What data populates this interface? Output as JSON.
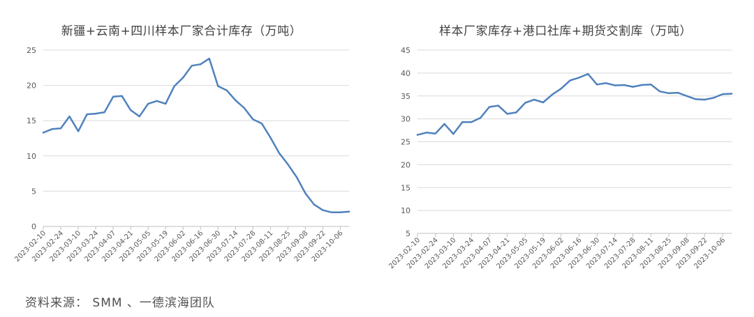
{
  "colors": {
    "line": "#4f81bd",
    "grid": "#d9d9d9",
    "axis": "#bfbfbf",
    "text": "#595959"
  },
  "source_note": "资料来源： SMM 、一德滨海团队",
  "chart_data": [
    {
      "type": "line",
      "title": "新疆+云南+四川样本厂家合计库存（万吨）",
      "ylim": [
        0,
        25
      ],
      "yticks": [
        0,
        5,
        10,
        15,
        20,
        25
      ],
      "grid": true,
      "x": [
        "2023-02-10",
        "2023-02-17",
        "2023-02-24",
        "2023-03-03",
        "2023-03-10",
        "2023-03-17",
        "2023-03-24",
        "2023-03-31",
        "2023-04-07",
        "2023-04-14",
        "2023-04-21",
        "2023-04-28",
        "2023-05-05",
        "2023-05-12",
        "2023-05-19",
        "2023-05-26",
        "2023-06-02",
        "2023-06-09",
        "2023-06-16",
        "2023-06-23",
        "2023-06-30",
        "2023-07-07",
        "2023-07-14",
        "2023-07-21",
        "2023-07-28",
        "2023-08-04",
        "2023-08-11",
        "2023-08-18",
        "2023-08-25",
        "2023-09-01",
        "2023-09-08",
        "2023-09-15",
        "2023-09-22",
        "2023-09-29",
        "2023-10-06",
        "2023-10-13"
      ],
      "xticks": [
        "2023-02-10",
        "2023-02-24",
        "2023-03-10",
        "2023-03-24",
        "2023-04-07",
        "2023-04-21",
        "2023-05-05",
        "2023-05-19",
        "2023-06-02",
        "2023-06-16",
        "2023-06-30",
        "2023-07-14",
        "2023-07-28",
        "2023-08-11",
        "2023-08-25",
        "2023-09-08",
        "2023-09-22",
        "2023-10-06"
      ],
      "series": [
        {
          "values": [
            13.3,
            13.8,
            13.9,
            15.6,
            13.5,
            15.9,
            16.0,
            16.2,
            18.4,
            18.5,
            16.5,
            15.6,
            17.4,
            17.8,
            17.4,
            19.9,
            21.1,
            22.8,
            23.0,
            23.8,
            19.9,
            19.3,
            17.9,
            16.8,
            15.2,
            14.6,
            12.6,
            10.4,
            8.8,
            7.0,
            4.7,
            3.1,
            2.3,
            2.0,
            2.0,
            2.1
          ]
        }
      ]
    },
    {
      "type": "line",
      "title": "样本厂家库存+港口社库+期货交割库（万吨）",
      "ylim": [
        5,
        45
      ],
      "yticks": [
        5,
        10,
        15,
        20,
        25,
        30,
        35,
        40,
        45
      ],
      "grid": true,
      "x": [
        "2023-02-10",
        "2023-02-17",
        "2023-02-24",
        "2023-03-03",
        "2023-03-10",
        "2023-03-17",
        "2023-03-24",
        "2023-03-31",
        "2023-04-07",
        "2023-04-14",
        "2023-04-21",
        "2023-04-28",
        "2023-05-05",
        "2023-05-12",
        "2023-05-19",
        "2023-05-26",
        "2023-06-02",
        "2023-06-09",
        "2023-06-16",
        "2023-06-23",
        "2023-06-30",
        "2023-07-07",
        "2023-07-14",
        "2023-07-21",
        "2023-07-28",
        "2023-08-04",
        "2023-08-11",
        "2023-08-18",
        "2023-08-25",
        "2023-09-01",
        "2023-09-08",
        "2023-09-15",
        "2023-09-22",
        "2023-09-29",
        "2023-10-06",
        "2023-10-13"
      ],
      "xticks": [
        "2023-02-10",
        "2023-02-24",
        "2023-03-10",
        "2023-03-24",
        "2023-04-07",
        "2023-04-21",
        "2023-05-05",
        "2023-05-19",
        "2023-06-02",
        "2023-06-16",
        "2023-06-30",
        "2023-07-14",
        "2023-07-28",
        "2023-08-11",
        "2023-08-25",
        "2023-09-08",
        "2023-09-22",
        "2023-10-06"
      ],
      "series": [
        {
          "values": [
            26.5,
            27.0,
            26.8,
            28.9,
            26.7,
            29.3,
            29.3,
            30.2,
            32.6,
            32.9,
            31.1,
            31.4,
            33.5,
            34.2,
            33.6,
            35.3,
            36.6,
            38.4,
            39.0,
            39.8,
            37.5,
            37.8,
            37.3,
            37.4,
            37.0,
            37.4,
            37.5,
            36.0,
            35.6,
            35.7,
            35.0,
            34.3,
            34.2,
            34.6,
            35.4,
            35.5
          ]
        }
      ]
    }
  ]
}
